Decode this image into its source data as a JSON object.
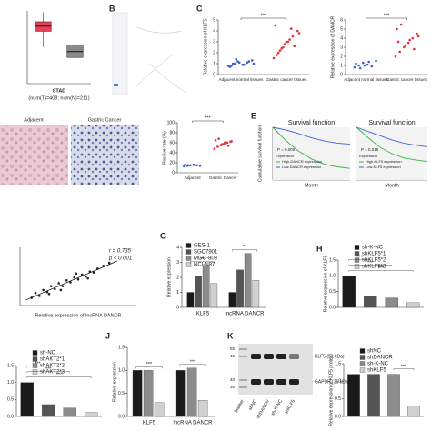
{
  "chart_data": [
    {
      "type": "box",
      "xlabel": "STAD",
      "subtitle": "(num(T)=408; num(N)=211)",
      "ylim": [
        0,
        10
      ],
      "boxes": [
        {
          "color": "#e8405a",
          "min": 5,
          "q1": 7.2,
          "median": 7.9,
          "q3": 8.5,
          "max": 9.8
        },
        {
          "color": "#8a8a8a",
          "min": 1.5,
          "q1": 3.6,
          "median": 4.4,
          "q3": 5.3,
          "max": 7.5
        }
      ]
    },
    {
      "type": "strip",
      "label": "C",
      "ylabel": "Relative expression of KLF5",
      "categories": [
        "Adjacent normal tissues",
        "Gastric cancer tissues"
      ],
      "ylim": [
        0,
        5
      ],
      "yticks": [
        0,
        1,
        2,
        3,
        4,
        5
      ],
      "annotations": [
        "***"
      ],
      "groups": [
        {
          "color": "#3a5fcd",
          "values": [
            0.8,
            1.0,
            1.2,
            0.9,
            1.1,
            1.3,
            0.7,
            1.0,
            1.1,
            0.9,
            1.2,
            1.0,
            0.8,
            1.4
          ]
        },
        {
          "color": "#e0303a",
          "values": [
            1.5,
            2.0,
            2.5,
            3.0,
            3.5,
            4.0,
            4.5,
            2.2,
            2.8,
            3.2,
            2.6,
            3.8,
            1.8,
            2.4,
            3.0,
            4.2
          ]
        }
      ]
    },
    {
      "type": "strip",
      "ylabel": "Relative expression of DANCR",
      "categories": [
        "Adjacent normal tissues",
        "Gastric cancer tissues"
      ],
      "ylim": [
        0,
        6
      ],
      "yticks": [
        0,
        1,
        2,
        3,
        4,
        5,
        6
      ],
      "annotations": [
        "***"
      ],
      "groups": [
        {
          "color": "#3a5fcd",
          "values": [
            0.8,
            1.0,
            1.3,
            1.1,
            0.9,
            1.5,
            1.2,
            0.7,
            1.0,
            1.4
          ]
        },
        {
          "color": "#e0303a",
          "values": [
            2.0,
            2.5,
            3.0,
            3.5,
            4.0,
            4.5,
            5.0,
            5.5,
            3.2,
            3.8,
            2.8,
            4.2,
            3.6
          ]
        }
      ]
    },
    {
      "type": "strip",
      "ylabel": "Positive rate (%)",
      "categories": [
        "Adjacent",
        "Gastric Cancer"
      ],
      "ylim": [
        0,
        100
      ],
      "yticks": [
        0,
        20,
        40,
        60,
        80,
        100
      ],
      "annotations": [
        "***"
      ],
      "groups": [
        {
          "color": "#3a5fcd",
          "values": [
            13,
            14,
            15,
            16,
            15,
            14,
            16,
            15
          ]
        },
        {
          "color": "#e0303a",
          "values": [
            48,
            52,
            55,
            58,
            60,
            62,
            65,
            68,
            57,
            61,
            54,
            63
          ]
        }
      ]
    },
    {
      "type": "line",
      "label": "E",
      "title": "Survival function",
      "xlabel": "Month",
      "ylabel": "Cumulative survival function",
      "annotations": [
        "P = 0.000"
      ],
      "legend_title": "Expression",
      "xlim": [
        0,
        120
      ],
      "ylim": [
        0,
        1
      ],
      "x": [
        0,
        20,
        40,
        60,
        80,
        100,
        120
      ],
      "series": [
        {
          "name": "High-DANCR expression",
          "color": "#3cb44b",
          "values": [
            1.0,
            0.75,
            0.55,
            0.4,
            0.3,
            0.25,
            0.22
          ]
        },
        {
          "name": "Low-DANCR expression",
          "color": "#4363d8",
          "values": [
            1.0,
            0.95,
            0.88,
            0.8,
            0.74,
            0.7,
            0.68
          ]
        }
      ]
    },
    {
      "type": "line",
      "title": "Survival function",
      "xlabel": "Month",
      "annotations": [
        "P = 0.015"
      ],
      "legend_title": "Expression",
      "xlim": [
        0,
        120
      ],
      "ylim": [
        0,
        1
      ],
      "x": [
        0,
        20,
        40,
        60,
        80,
        100,
        120
      ],
      "series": [
        {
          "name": "High-KLF5 expression",
          "color": "#3cb44b",
          "values": [
            1.0,
            0.8,
            0.62,
            0.5,
            0.42,
            0.38,
            0.35
          ]
        },
        {
          "name": "Low-KLF5 expression",
          "color": "#4363d8",
          "values": [
            1.0,
            0.92,
            0.84,
            0.76,
            0.7,
            0.66,
            0.63
          ]
        }
      ]
    },
    {
      "type": "scatter",
      "xlabel": "Relative expression of lncRNA DANCR",
      "annotations": [
        "r = 0.735",
        "p < 0.001"
      ],
      "xlim": [
        0,
        6
      ],
      "ylim": [
        0,
        6
      ],
      "x": [
        0.6,
        0.8,
        1.0,
        1.2,
        1.4,
        1.6,
        1.8,
        2.0,
        2.2,
        2.4,
        2.6,
        2.8,
        3.0,
        3.2,
        3.4,
        3.6,
        3.8,
        4.0,
        4.3,
        4.6,
        2.1,
        2.9,
        3.5,
        1.5
      ],
      "y": [
        0.8,
        1.3,
        1.0,
        1.6,
        1.4,
        2.0,
        1.7,
        2.3,
        2.0,
        2.6,
        2.4,
        2.9,
        2.7,
        3.2,
        3.0,
        3.5,
        3.4,
        3.8,
        4.1,
        4.4,
        1.6,
        3.3,
        2.8,
        1.2
      ]
    },
    {
      "type": "bar",
      "label": "G",
      "ylabel": "Relative expression",
      "categories": [
        "KLF5",
        "lncRNA DANCR"
      ],
      "ylim": [
        0,
        4
      ],
      "yticks": [
        0,
        1,
        2,
        3,
        4
      ],
      "annotations": [
        "***",
        "**"
      ],
      "series": [
        {
          "name": "GES-1",
          "color": "#1a1a1a",
          "values": [
            1.0,
            1.0
          ]
        },
        {
          "name": "SGC7901",
          "color": "#555555",
          "values": [
            2.1,
            2.5
          ]
        },
        {
          "name": "MGC-803",
          "color": "#8c8c8c",
          "values": [
            2.8,
            3.6
          ]
        },
        {
          "name": "NCI-N87",
          "color": "#d0d0d0",
          "values": [
            1.6,
            1.8
          ]
        }
      ]
    },
    {
      "type": "bar",
      "label": "H",
      "ylabel": "Relative expression of KLF5",
      "categories": [
        "sh-K-NC",
        "shKLF5*1",
        "shKLF5*2",
        "shKLF5*3"
      ],
      "values": [
        1.0,
        0.35,
        0.3,
        0.15
      ],
      "colors": [
        "#1a1a1a",
        "#555555",
        "#8c8c8c",
        "#d0d0d0"
      ],
      "ylim": [
        0,
        1.5
      ],
      "yticks": [
        {
          "value": 0,
          "label": "0.0"
        },
        0.5,
        {
          "value": 1,
          "label": "1.0"
        },
        1.5
      ],
      "annotations": [
        "***",
        "***",
        "***"
      ]
    },
    {
      "type": "bar",
      "categories": [
        "sh-NC",
        "shAKT2*1",
        "shAKT2*2",
        "shAKT2*3"
      ],
      "values": [
        1.0,
        0.35,
        0.25,
        0.12
      ],
      "colors": [
        "#1a1a1a",
        "#555555",
        "#8c8c8c",
        "#d0d0d0"
      ],
      "ylim": [
        0,
        1.5
      ],
      "yticks": [
        {
          "value": 0,
          "label": "0.0"
        },
        0.5,
        {
          "value": 1,
          "label": "1.0"
        },
        1.5
      ],
      "annotations": [
        "***",
        "***",
        "***"
      ]
    },
    {
      "type": "bar",
      "label": "J",
      "ylabel": "Relative expression",
      "categories": [
        "KLF5",
        "lncRNA DANCR"
      ],
      "ylim": [
        0,
        1.5
      ],
      "yticks": [
        {
          "value": 0,
          "label": "0.0"
        },
        0.5,
        {
          "value": 1,
          "label": "1.0"
        },
        1.5
      ],
      "annotations": [
        "***",
        "***"
      ],
      "series": [
        {
          "color": "#1a1a1a",
          "values": [
            1.0,
            1.0
          ]
        },
        {
          "color": "#8c8c8c",
          "values": [
            1.0,
            1.05
          ]
        },
        {
          "color": "#d0d0d0",
          "values": [
            0.3,
            0.35
          ]
        }
      ]
    },
    {
      "type": "bar",
      "ylabel": "Relative expression of KLF5 protein",
      "categories": [
        "shNC",
        "shDANCR",
        "sh-K-NC",
        "shKLF5"
      ],
      "values": [
        1.2,
        1.2,
        1.2,
        0.3
      ],
      "colors": [
        "#1a1a1a",
        "#555555",
        "#8c8c8c",
        "#d0d0d0"
      ],
      "ylim": [
        0,
        1.5
      ],
      "yticks": [
        {
          "value": 0,
          "label": "0.0"
        },
        0.5,
        {
          "value": 1,
          "label": "1.0"
        },
        1.5
      ],
      "annotations": [
        "***"
      ]
    }
  ],
  "network": {
    "label": "B"
  },
  "histology": {
    "labels": [
      "Adjacent",
      "Gastric Cancer"
    ]
  },
  "blot": {
    "label": "K",
    "marker": "Marker",
    "lanes": [
      "shNC",
      "shDANCR",
      "sh-K-NC",
      "shKLF5"
    ],
    "bands": [
      "KLF5 (51 kDa)",
      "GAPDH (36 kDa)"
    ],
    "ladder": [
      55,
      45,
      40,
      35
    ]
  }
}
